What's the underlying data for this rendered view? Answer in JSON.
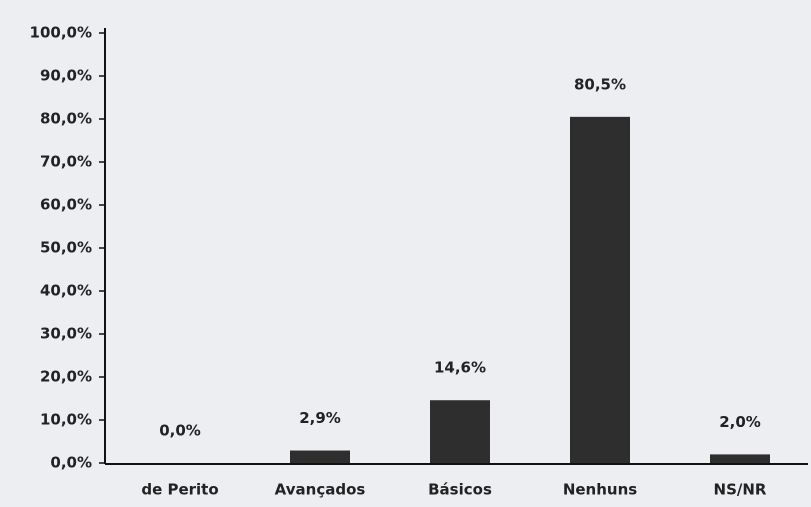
{
  "chart_data": {
    "type": "bar",
    "categories": [
      "de Perito",
      "Avançados",
      "Básicos",
      "Nenhuns",
      "NS/NR"
    ],
    "values": [
      0,
      2.9,
      14.6,
      80.5,
      2.0
    ],
    "value_labels": [
      "0,0%",
      "2,9%",
      "14,6%",
      "80,5%",
      "2,0%"
    ],
    "color": "#2e2e2e",
    "ylim": [
      0,
      100
    ],
    "yticks": [
      {
        "value": 0,
        "label": "0,0%"
      },
      {
        "value": 10,
        "label": "10,0%"
      },
      {
        "value": 20,
        "label": "20,0%"
      },
      {
        "value": 30,
        "label": "30,0%"
      },
      {
        "value": 40,
        "label": "40,0%"
      },
      {
        "value": 50,
        "label": "50,0%"
      },
      {
        "value": 60,
        "label": "60,0%"
      },
      {
        "value": 70,
        "label": "70,0%"
      },
      {
        "value": 80,
        "label": "80,0%"
      },
      {
        "value": 90,
        "label": "90,0%"
      },
      {
        "value": 100,
        "label": "100,0%"
      }
    ],
    "grid": false
  }
}
